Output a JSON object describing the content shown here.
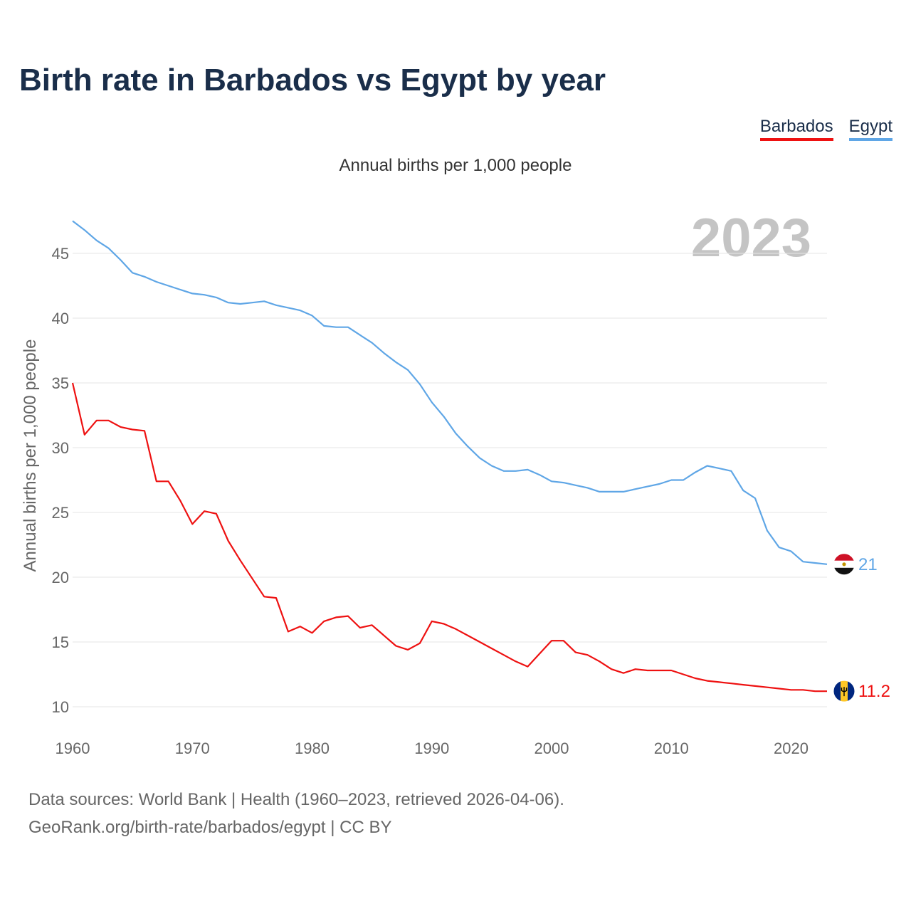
{
  "title": "Birth rate in Barbados vs Egypt by year",
  "legend": [
    {
      "label": "Barbados",
      "color": "#ee1111"
    },
    {
      "label": "Egypt",
      "color": "#5fa6e6"
    }
  ],
  "footer": {
    "line1": "Data sources: World Bank | Health (1960–2023, retrieved 2026-04-06).",
    "line2": "GeoRank.org/birth-rate/barbados/egypt | CC BY"
  },
  "chart_data": {
    "type": "line",
    "title": "Annual births per 1,000 people",
    "ylabel": "Annual births per 1,000 people",
    "xlabel": "",
    "year_watermark": "2023",
    "xlim": [
      1960,
      2023
    ],
    "ylim": [
      8.5,
      47.5
    ],
    "x_ticks": [
      1960,
      1970,
      1980,
      1990,
      2000,
      2010,
      2020
    ],
    "y_ticks": [
      10,
      15,
      20,
      25,
      30,
      35,
      40,
      45
    ],
    "grid": true,
    "legend_position": "top-right",
    "x": [
      1960,
      1961,
      1962,
      1963,
      1964,
      1965,
      1966,
      1967,
      1968,
      1969,
      1970,
      1971,
      1972,
      1973,
      1974,
      1975,
      1976,
      1977,
      1978,
      1979,
      1980,
      1981,
      1982,
      1983,
      1984,
      1985,
      1986,
      1987,
      1988,
      1989,
      1990,
      1991,
      1992,
      1993,
      1994,
      1995,
      1996,
      1997,
      1998,
      1999,
      2000,
      2001,
      2002,
      2003,
      2004,
      2005,
      2006,
      2007,
      2008,
      2009,
      2010,
      2011,
      2012,
      2013,
      2014,
      2015,
      2016,
      2017,
      2018,
      2019,
      2020,
      2021,
      2022,
      2023
    ],
    "series": [
      {
        "name": "Barbados",
        "color": "#ee1111",
        "end_label": "11.2",
        "flag": "barbados-flag-icon",
        "values": [
          35.0,
          31.0,
          32.1,
          32.1,
          31.6,
          31.4,
          31.3,
          27.4,
          27.4,
          25.9,
          24.1,
          25.1,
          24.9,
          22.8,
          21.3,
          19.9,
          18.5,
          18.4,
          15.8,
          16.2,
          15.7,
          16.6,
          16.9,
          17.0,
          16.1,
          16.3,
          15.5,
          14.7,
          14.4,
          14.9,
          16.6,
          16.4,
          16.0,
          15.5,
          15.0,
          14.5,
          14.0,
          13.5,
          13.1,
          14.1,
          15.1,
          15.1,
          14.2,
          14.0,
          13.5,
          12.9,
          12.6,
          12.9,
          12.8,
          12.8,
          12.8,
          12.5,
          12.2,
          12.0,
          11.9,
          11.8,
          11.7,
          11.6,
          11.5,
          11.4,
          11.3,
          11.3,
          11.2,
          11.2
        ]
      },
      {
        "name": "Egypt",
        "color": "#5fa6e6",
        "end_label": "21",
        "flag": "egypt-flag-icon",
        "values": [
          47.5,
          46.8,
          46.0,
          45.4,
          44.5,
          43.5,
          43.2,
          42.8,
          42.5,
          42.2,
          41.9,
          41.8,
          41.6,
          41.2,
          41.1,
          41.2,
          41.3,
          41.0,
          40.8,
          40.6,
          40.2,
          39.4,
          39.3,
          39.3,
          38.7,
          38.1,
          37.3,
          36.6,
          36.0,
          34.9,
          33.5,
          32.4,
          31.1,
          30.1,
          29.2,
          28.6,
          28.2,
          28.2,
          28.3,
          27.9,
          27.4,
          27.3,
          27.1,
          26.9,
          26.6,
          26.6,
          26.6,
          26.8,
          27.0,
          27.2,
          27.5,
          27.5,
          28.1,
          28.6,
          28.4,
          28.2,
          26.7,
          26.1,
          23.6,
          22.3,
          22.0,
          21.2,
          21.1,
          21.0
        ]
      }
    ]
  }
}
